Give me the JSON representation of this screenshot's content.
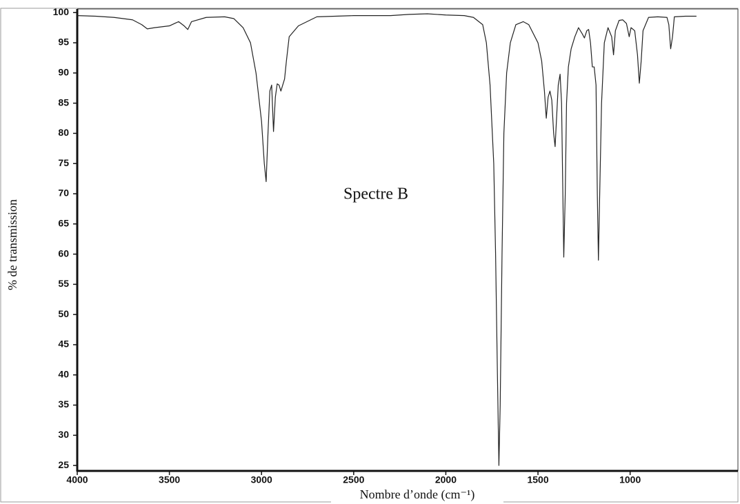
{
  "chart_data": {
    "type": "line",
    "annotation": "Spectre B",
    "xlabel": "Nombre d’onde (cm⁻¹)",
    "ylabel": "% de transmission",
    "xlim": [
      4000,
      415
    ],
    "ylim": [
      24.1,
      100.6
    ],
    "xticks": [
      4000,
      3500,
      3000,
      2500,
      2000,
      1500,
      1000
    ],
    "yticks": [
      25,
      30,
      35,
      40,
      45,
      50,
      55,
      60,
      65,
      70,
      75,
      80,
      85,
      90,
      95,
      100
    ],
    "x": [
      4000,
      3900,
      3800,
      3700,
      3650,
      3620,
      3580,
      3500,
      3450,
      3420,
      3400,
      3380,
      3300,
      3200,
      3150,
      3100,
      3060,
      3030,
      3000,
      2985,
      2975,
      2965,
      2955,
      2945,
      2935,
      2925,
      2915,
      2905,
      2895,
      2885,
      2875,
      2865,
      2850,
      2800,
      2700,
      2500,
      2300,
      2200,
      2100,
      2000,
      1900,
      1850,
      1800,
      1780,
      1760,
      1740,
      1730,
      1720,
      1712,
      1705,
      1695,
      1685,
      1670,
      1650,
      1620,
      1580,
      1550,
      1500,
      1480,
      1465,
      1455,
      1445,
      1435,
      1425,
      1415,
      1407,
      1400,
      1390,
      1380,
      1372,
      1365,
      1360,
      1352,
      1345,
      1335,
      1320,
      1300,
      1280,
      1260,
      1248,
      1235,
      1225,
      1215,
      1205,
      1195,
      1185,
      1178,
      1172,
      1165,
      1155,
      1140,
      1120,
      1100,
      1090,
      1080,
      1060,
      1040,
      1020,
      1005,
      995,
      975,
      960,
      950,
      940,
      930,
      900,
      850,
      800,
      790,
      780,
      770,
      760,
      700,
      640
    ],
    "series": [
      {
        "color": "#222222",
        "values": [
          99.5,
          99.4,
          99.2,
          98.8,
          98,
          97.3,
          97.5,
          97.8,
          98.5,
          97.8,
          97.2,
          98.5,
          99.2,
          99.3,
          99,
          97.5,
          95,
          90,
          82,
          75,
          72,
          80,
          87,
          88,
          80.3,
          86,
          88.2,
          88,
          87,
          88,
          89,
          92,
          96,
          97.8,
          99.3,
          99.5,
          99.5,
          99.7,
          99.8,
          99.6,
          99.5,
          99.2,
          98,
          95,
          88,
          75,
          60,
          40,
          25,
          35,
          60,
          80,
          90,
          95,
          98,
          98.5,
          98,
          95,
          92,
          87,
          82.5,
          86,
          87,
          85.5,
          80,
          77.8,
          82,
          88,
          89.8,
          85,
          70,
          59.5,
          70,
          85,
          91,
          94,
          96,
          97.5,
          96.5,
          95.8,
          97,
          97.2,
          95,
          91,
          91,
          88,
          70,
          59,
          70,
          85,
          95,
          97.5,
          96,
          93,
          97,
          98.7,
          98.8,
          98.2,
          96,
          97.5,
          97,
          93,
          88.3,
          92,
          97,
          99.2,
          99.3,
          99.2,
          98,
          94,
          96,
          99.3,
          99.4,
          99.4
        ]
      }
    ]
  }
}
